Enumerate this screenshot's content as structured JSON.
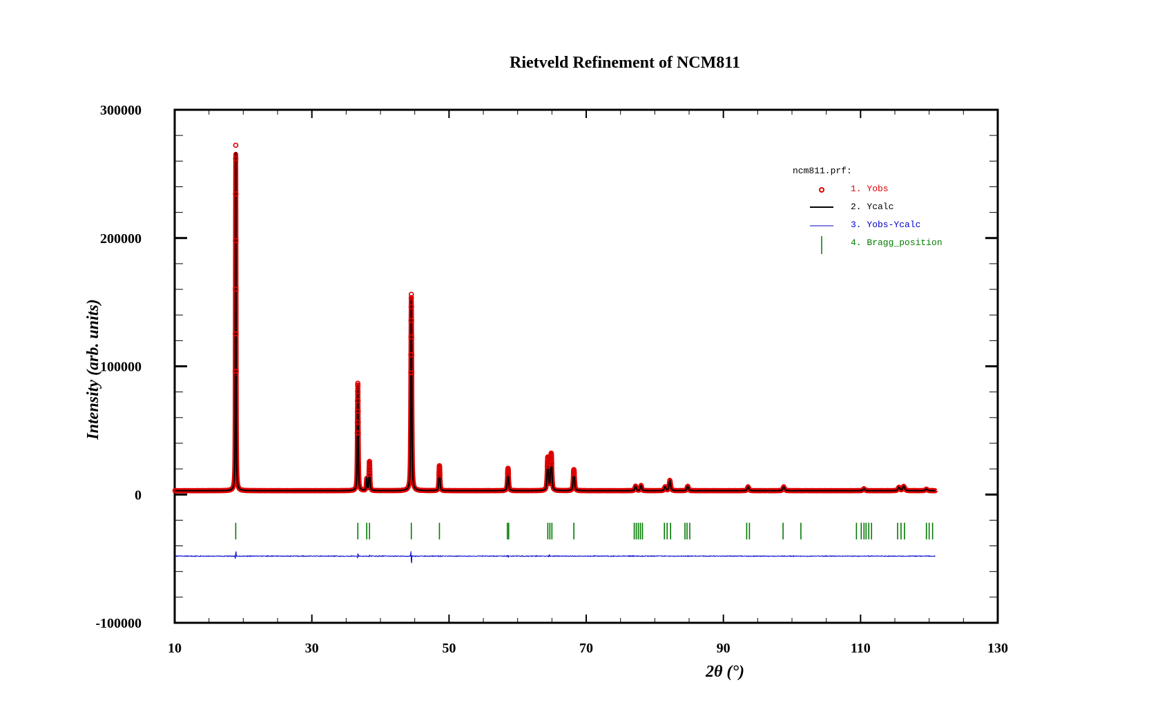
{
  "chart_data": {
    "type": "line",
    "title": "Rietveld Refinement of NCM811",
    "xlabel": "2θ (°)",
    "ylabel": "Intensity (arb. units)",
    "xlim": [
      10,
      130
    ],
    "ylim": [
      -100000,
      300000
    ],
    "x_ticks": [
      10,
      30,
      50,
      70,
      90,
      110,
      130
    ],
    "y_ticks": [
      -100000,
      0,
      100000,
      200000,
      300000
    ],
    "x_tick_labels": [
      "10",
      "30",
      "50",
      "70",
      "90",
      "110",
      "130"
    ],
    "y_tick_labels": [
      "-100000",
      "0",
      "100000",
      "200000",
      "300000"
    ],
    "grid": false,
    "legend": {
      "header": "ncm811.prf:",
      "position": "top-right",
      "entries": [
        {
          "label": "1. Yobs",
          "color": "#e00000",
          "marker": "circle"
        },
        {
          "label": "2. Ycalc",
          "color": "#000000",
          "marker": "line"
        },
        {
          "label": "3. Yobs-Ycalc",
          "color": "#0000cc",
          "marker": "line"
        },
        {
          "label": "4. Bragg_position",
          "color": "#007a00",
          "marker": "tick"
        }
      ]
    },
    "x_range_data": [
      10.0,
      120.9
    ],
    "background": 3000,
    "peaks": [
      {
        "x": 18.9,
        "height": 264000
      },
      {
        "x": 36.7,
        "height": 82000
      },
      {
        "x": 38.0,
        "height": 9000
      },
      {
        "x": 38.4,
        "height": 22000
      },
      {
        "x": 44.5,
        "height": 150000
      },
      {
        "x": 48.6,
        "height": 19000
      },
      {
        "x": 58.6,
        "height": 17000
      },
      {
        "x": 64.4,
        "height": 25000
      },
      {
        "x": 64.9,
        "height": 28000
      },
      {
        "x": 68.2,
        "height": 16000
      },
      {
        "x": 77.2,
        "height": 3500
      },
      {
        "x": 78.0,
        "height": 4000
      },
      {
        "x": 81.5,
        "height": 3000
      },
      {
        "x": 82.2,
        "height": 8000
      },
      {
        "x": 84.8,
        "height": 3500
      },
      {
        "x": 93.6,
        "height": 3000
      },
      {
        "x": 98.8,
        "height": 3000
      },
      {
        "x": 110.5,
        "height": 1500
      },
      {
        "x": 115.6,
        "height": 2500
      },
      {
        "x": 116.3,
        "height": 3500
      },
      {
        "x": 119.6,
        "height": 1200
      }
    ],
    "bragg_positions": [
      18.9,
      36.7,
      38.0,
      38.4,
      44.5,
      48.6,
      58.5,
      58.7,
      64.4,
      64.7,
      65.0,
      68.2,
      77.0,
      77.3,
      77.6,
      77.9,
      78.2,
      81.4,
      81.8,
      82.3,
      84.4,
      84.7,
      85.1,
      93.4,
      93.8,
      98.7,
      101.3,
      109.4,
      110.1,
      110.5,
      110.8,
      111.2,
      111.6,
      115.4,
      115.9,
      116.4,
      119.6,
      120.0,
      120.5
    ],
    "bragg_y_range": [
      -35000,
      -22000
    ],
    "difference_offset": -48000,
    "difference_features": [
      {
        "x": 18.9,
        "amplitude": 5000
      },
      {
        "x": 36.7,
        "amplitude": 3000
      },
      {
        "x": 38.4,
        "amplitude": 1200
      },
      {
        "x": 44.5,
        "amplitude": -8000
      },
      {
        "x": 58.6,
        "amplitude": -1200
      },
      {
        "x": 64.6,
        "amplitude": 1500
      }
    ]
  }
}
